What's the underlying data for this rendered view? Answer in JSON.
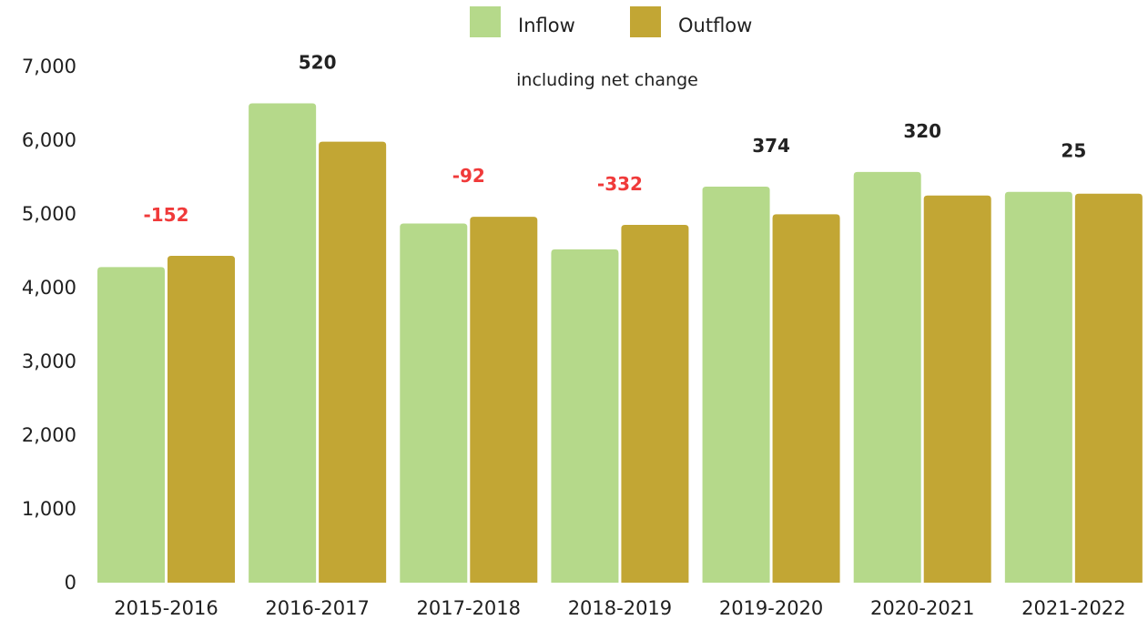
{
  "chart_data": {
    "type": "bar",
    "subtitle": "including net change",
    "categories": [
      "2015-2016",
      "2016-2017",
      "2017-2018",
      "2018-2019",
      "2019-2020",
      "2020-2021",
      "2021-2022"
    ],
    "series": [
      {
        "name": "Inflow",
        "values": [
          4280,
          6500,
          4870,
          4520,
          5370,
          5570,
          5300
        ]
      },
      {
        "name": "Outflow",
        "values": [
          4432,
          5980,
          4962,
          4852,
          4996,
          5250,
          5275
        ]
      }
    ],
    "net_change_labels": [
      "-152",
      "520",
      "-92",
      "-332",
      "374",
      "320",
      "25"
    ],
    "y_ticks": [
      "0",
      "1,000",
      "2,000",
      "3,000",
      "4,000",
      "5,000",
      "6,000",
      "7,000"
    ],
    "ylim": [
      0,
      7000
    ],
    "grid": false,
    "legend_position": "top-center",
    "colors": {
      "inflow": "#b5d98a",
      "outflow": "#c2a634",
      "negative_label": "#f03a3a",
      "positive_label": "#222222",
      "text": "#1f1f1f"
    }
  }
}
